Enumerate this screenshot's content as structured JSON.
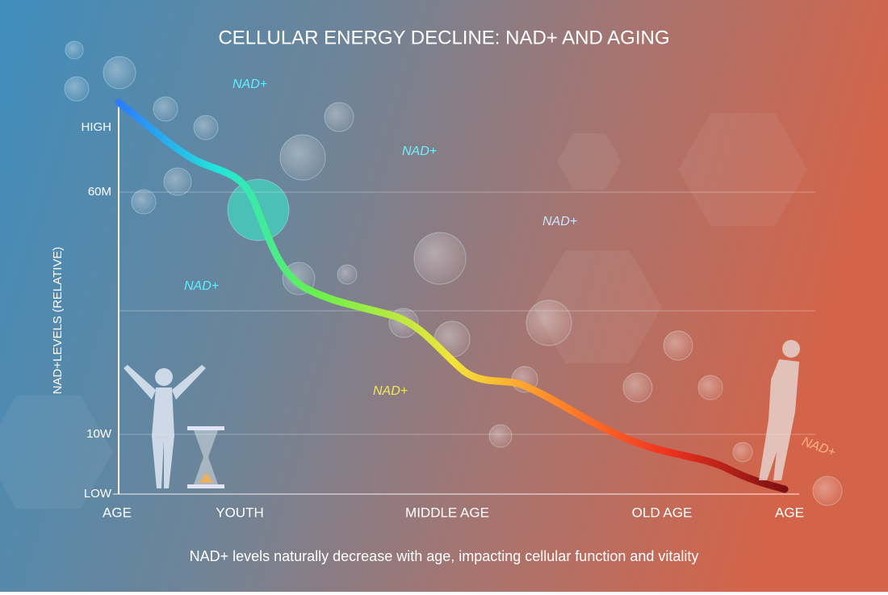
{
  "title": "CELLULAR ENERGY DECLINE: NAD+ AND AGING",
  "y_axis_label": "NAD+LEVELS (RELATIVE)",
  "y_labels": [
    "HIGH",
    "60M",
    "10W",
    "LOW"
  ],
  "x_labels": [
    "AGE",
    "YOUTH",
    "MIDDLE AGE",
    "OLD AGE",
    "AGE"
  ],
  "floating_labels": [
    "NAD+",
    "NAD+",
    "NAD+",
    "NAD+",
    "NAD+",
    "NAD+"
  ],
  "caption": "NAD+ levels naturally decrease with age, impacting cellular function and vitality"
}
